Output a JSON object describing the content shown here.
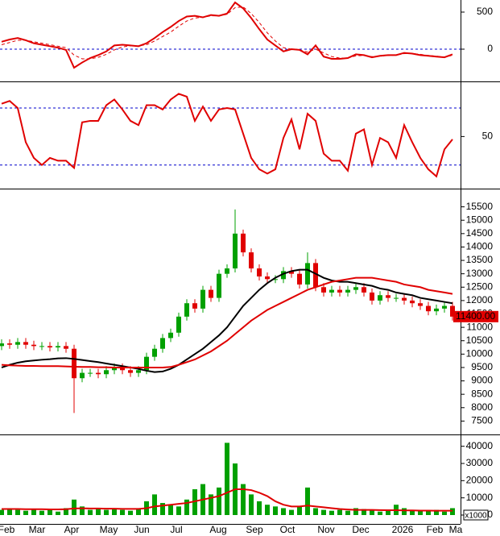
{
  "chart_data": [
    {
      "type": "macd",
      "ylim": [
        -424,
        663
      ],
      "yticks": [
        0,
        500
      ],
      "zero_line": 0,
      "series": [
        {
          "color": "#e00000",
          "style": "solid",
          "values": [
            100,
            130,
            150,
            120,
            80,
            60,
            40,
            20,
            -10,
            -250,
            -180,
            -120,
            -80,
            -30,
            50,
            60,
            50,
            40,
            80,
            150,
            230,
            300,
            380,
            440,
            450,
            430,
            460,
            450,
            480,
            630,
            550,
            420,
            270,
            130,
            50,
            -30,
            0,
            -10,
            -70,
            50,
            -100,
            -130,
            -130,
            -120,
            -70,
            -80,
            -110,
            -90,
            -80,
            -80,
            -50,
            -60,
            -80,
            -90,
            -100,
            -110,
            -70
          ]
        },
        {
          "color": "#e00000",
          "style": "dashed",
          "values": [
            60,
            90,
            120,
            120,
            100,
            80,
            60,
            40,
            20,
            -80,
            -130,
            -130,
            -110,
            -70,
            -10,
            30,
            45,
            45,
            60,
            110,
            170,
            230,
            310,
            380,
            420,
            430,
            450,
            450,
            470,
            560,
            570,
            480,
            360,
            220,
            110,
            20,
            0,
            -10,
            -40,
            0,
            -50,
            -100,
            -120,
            -120,
            -90,
            -85,
            -100,
            -95,
            -85,
            -80,
            -60,
            -60,
            -70,
            -85,
            -95,
            -105,
            -85
          ]
        }
      ]
    },
    {
      "type": "rsi",
      "ylim": [
        14,
        87
      ],
      "yticks": [
        50
      ],
      "reference_lines": [
        30,
        70
      ],
      "series": [
        {
          "color": "#e00000",
          "values": [
            73,
            75,
            70,
            46,
            35,
            30,
            35,
            33,
            33,
            28,
            60,
            61,
            61,
            72,
            76,
            69,
            61,
            58,
            72,
            72,
            69,
            76,
            80,
            78,
            61,
            71,
            61,
            69,
            70,
            69,
            52,
            35,
            27,
            24,
            27,
            49,
            62,
            41,
            66,
            61,
            38,
            33,
            33,
            26,
            52,
            55,
            30,
            49,
            46,
            35,
            58,
            46,
            35,
            27,
            22,
            41,
            48
          ]
        }
      ]
    },
    {
      "type": "candlestick",
      "ylim": [
        7000,
        16000
      ],
      "yticks": [
        7500,
        8000,
        8500,
        9000,
        9500,
        10000,
        10500,
        11000,
        11500,
        12000,
        12500,
        13000,
        13500,
        14000,
        14500,
        15000,
        15500
      ],
      "up_color": "#00a000",
      "down_color": "#e00000",
      "open": [
        10300,
        10400,
        10350,
        10450,
        10350,
        10300,
        10300,
        10250,
        10300,
        10200,
        9100,
        9300,
        9300,
        9250,
        9400,
        9500,
        9400,
        9300,
        9400,
        9900,
        10200,
        10600,
        10800,
        11400,
        11900,
        11700,
        12400,
        12100,
        13000,
        13200,
        14500,
        13800,
        13200,
        12900,
        12800,
        12800,
        13100,
        13000,
        12600,
        13400,
        12500,
        12300,
        12400,
        12300,
        12400,
        12500,
        12300,
        12000,
        12200,
        12100,
        12100,
        12000,
        11900,
        11800,
        11600,
        11700,
        11800
      ],
      "high": [
        10550,
        10550,
        10600,
        10600,
        10500,
        10450,
        10450,
        10450,
        10450,
        10350,
        9450,
        9450,
        9450,
        9550,
        9650,
        9650,
        9550,
        9550,
        10050,
        10350,
        10750,
        10950,
        11550,
        12050,
        12050,
        12550,
        12550,
        13150,
        13350,
        15400,
        14650,
        13950,
        13350,
        13050,
        12950,
        13250,
        13250,
        13150,
        13800,
        13550,
        12650,
        12550,
        12550,
        12550,
        12650,
        12650,
        12450,
        12350,
        12350,
        12250,
        12250,
        12150,
        12050,
        11950,
        11850,
        11950,
        11950
      ],
      "low": [
        10150,
        10200,
        10200,
        10200,
        10150,
        10150,
        10100,
        10100,
        10050,
        7800,
        8950,
        9150,
        9100,
        9100,
        9250,
        9250,
        9150,
        9150,
        9250,
        9750,
        10050,
        10450,
        10650,
        11250,
        11550,
        11550,
        11950,
        11950,
        12850,
        13050,
        13650,
        13050,
        12750,
        12650,
        12650,
        12650,
        12850,
        12450,
        12450,
        12350,
        12150,
        12150,
        12150,
        12150,
        12250,
        12150,
        11850,
        11850,
        11950,
        11950,
        11850,
        11750,
        11650,
        11450,
        11450,
        11550,
        11250
      ],
      "close": [
        10400,
        10350,
        10450,
        10350,
        10300,
        10300,
        10250,
        10300,
        10200,
        9100,
        9300,
        9300,
        9250,
        9400,
        9500,
        9400,
        9300,
        9400,
        9900,
        10200,
        10600,
        10800,
        11400,
        11900,
        11700,
        12400,
        12100,
        13000,
        13200,
        14500,
        13800,
        13200,
        12900,
        12800,
        12800,
        13100,
        13000,
        12600,
        13400,
        12500,
        12300,
        12400,
        12300,
        12400,
        12500,
        12300,
        12000,
        12200,
        12100,
        12100,
        12000,
        11900,
        11800,
        11600,
        11700,
        11800,
        11400
      ],
      "series": [
        {
          "color": "#000000",
          "values": [
            9500,
            9600,
            9680,
            9730,
            9760,
            9790,
            9810,
            9840,
            9850,
            9820,
            9780,
            9740,
            9700,
            9650,
            9600,
            9550,
            9500,
            9450,
            9380,
            9330,
            9350,
            9450,
            9600,
            9800,
            10000,
            10200,
            10450,
            10700,
            11000,
            11400,
            11800,
            12100,
            12400,
            12650,
            12850,
            13000,
            13100,
            13150,
            13150,
            13000,
            12850,
            12750,
            12700,
            12700,
            12650,
            12600,
            12550,
            12450,
            12400,
            12300,
            12250,
            12200,
            12100,
            12050,
            12000,
            11950,
            11900
          ]
        },
        {
          "color": "#e00000",
          "values": [
            9600,
            9580,
            9570,
            9560,
            9560,
            9550,
            9550,
            9550,
            9540,
            9530,
            9520,
            9520,
            9510,
            9510,
            9500,
            9500,
            9500,
            9500,
            9500,
            9500,
            9500,
            9520,
            9600,
            9700,
            9800,
            9950,
            10100,
            10300,
            10500,
            10750,
            11000,
            11250,
            11450,
            11650,
            11800,
            11950,
            12100,
            12250,
            12400,
            12500,
            12600,
            12700,
            12750,
            12800,
            12850,
            12850,
            12850,
            12800,
            12750,
            12700,
            12600,
            12550,
            12500,
            12400,
            12350,
            12300,
            12250
          ]
        }
      ],
      "last_price": {
        "value": 11400,
        "label": "11400.00"
      }
    },
    {
      "type": "volume",
      "ylim": [
        0,
        45000
      ],
      "yticks": [
        0,
        10000,
        20000,
        30000,
        40000
      ],
      "unit_label": "x1000",
      "color": "#00a000",
      "values": [
        3000,
        4000,
        3000,
        2500,
        3000,
        2500,
        3000,
        2000,
        4000,
        9000,
        5000,
        3000,
        4000,
        3000,
        4000,
        3000,
        2500,
        3500,
        8000,
        12000,
        7000,
        6000,
        5000,
        9000,
        15000,
        18000,
        12000,
        16000,
        42000,
        30000,
        18000,
        12000,
        8000,
        6000,
        5000,
        4000,
        3000,
        5000,
        16000,
        4000,
        3000,
        2500,
        3000,
        2500,
        4000,
        3500,
        3000,
        2000,
        2500,
        6000,
        4000,
        2500,
        3000,
        2500,
        3000,
        2000,
        4000
      ],
      "series": [
        {
          "color": "#e00000",
          "values": [
            3500,
            3500,
            3500,
            3400,
            3400,
            3400,
            3300,
            3300,
            3400,
            3800,
            3900,
            3800,
            3800,
            3700,
            3700,
            3600,
            3600,
            3600,
            4000,
            5000,
            5500,
            6000,
            6500,
            7000,
            8000,
            9000,
            10000,
            11000,
            13000,
            15000,
            15000,
            14500,
            13000,
            11000,
            8000,
            6000,
            5000,
            5000,
            5500,
            5000,
            4500,
            4000,
            3500,
            3200,
            3000,
            3000,
            3000,
            2900,
            2800,
            2800,
            2700,
            2700,
            2600,
            2600,
            2500,
            2500,
            2500
          ]
        }
      ],
      "x_tick_labels": [
        "Feb",
        "Mar",
        "Apr",
        "May",
        "Jun",
        "Jul",
        "Aug",
        "Sep",
        "Oct",
        "Nov",
        "Dec",
        "2026",
        "Feb",
        "Ma"
      ]
    }
  ]
}
